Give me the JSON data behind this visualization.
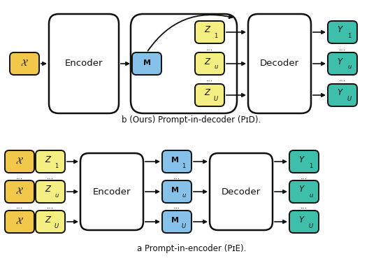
{
  "fig_width": 5.48,
  "fig_height": 3.86,
  "dpi": 100,
  "bg_color": "#ffffff",
  "color_orange": "#F2C84B",
  "color_yellow": "#F5EE82",
  "color_blue": "#85C1E9",
  "color_teal": "#3DBFAC",
  "color_white": "#ffffff",
  "color_black": "#111111",
  "section_a_label": "a Prompt-in-encoder (PɪE).",
  "section_b_label": "b (Ours) Prompt-in-decoder (PɪD)."
}
